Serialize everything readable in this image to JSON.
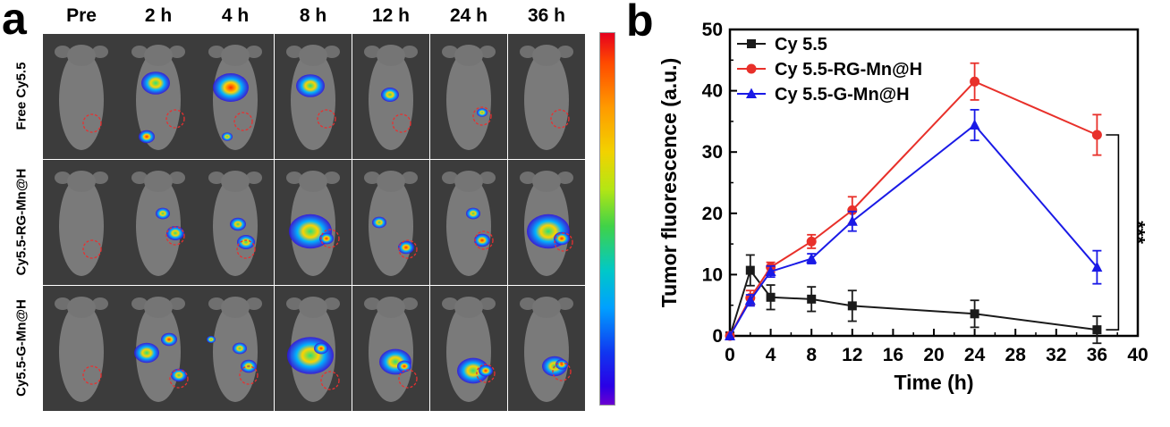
{
  "panel_a": {
    "letter": "a",
    "columns": [
      "Pre",
      "2 h",
      "4 h",
      "8 h",
      "12 h",
      "24 h",
      "36 h"
    ],
    "rows": [
      "Free Cy5.5",
      "Cy5.5-RG-Mn@H",
      "Cy5.5-G-Mn@H"
    ]
  },
  "panel_b": {
    "letter": "b"
  },
  "colors": {
    "cy55": "#1a1a1a",
    "rg": "#e8302a",
    "g": "#1a1ae6",
    "bracket": "#000000"
  },
  "chart_data": {
    "type": "line",
    "xlabel": "Time (h)",
    "ylabel": "Tumor fluorescence (a.u.)",
    "xlim": [
      0,
      40
    ],
    "ylim": [
      0,
      50
    ],
    "xticks": [
      0,
      4,
      8,
      12,
      16,
      20,
      24,
      28,
      32,
      36,
      40
    ],
    "yticks": [
      0,
      10,
      20,
      30,
      40,
      50
    ],
    "x": [
      0,
      2,
      4,
      8,
      12,
      24,
      36
    ],
    "series": [
      {
        "name": "Cy 5.5",
        "marker": "square",
        "values": [
          0,
          10.7,
          6.3,
          6.0,
          4.9,
          3.6,
          1.0
        ],
        "errors": [
          0,
          2.5,
          2.0,
          2.0,
          2.5,
          2.2,
          2.2
        ]
      },
      {
        "name": "Cy 5.5-RG-Mn@H",
        "marker": "circle",
        "values": [
          0,
          6.2,
          11.2,
          15.4,
          20.5,
          41.5,
          32.8
        ],
        "errors": [
          0,
          1.2,
          0.8,
          1.1,
          2.2,
          3.0,
          3.3
        ]
      },
      {
        "name": "Cy 5.5-G-Mn@H",
        "marker": "triangle",
        "values": [
          0,
          5.8,
          10.5,
          12.6,
          18.7,
          34.4,
          11.2
        ],
        "errors": [
          0,
          0.9,
          0.9,
          0.8,
          1.6,
          2.5,
          2.7
        ]
      }
    ],
    "annotation": "***",
    "legend_position": "top-left"
  }
}
